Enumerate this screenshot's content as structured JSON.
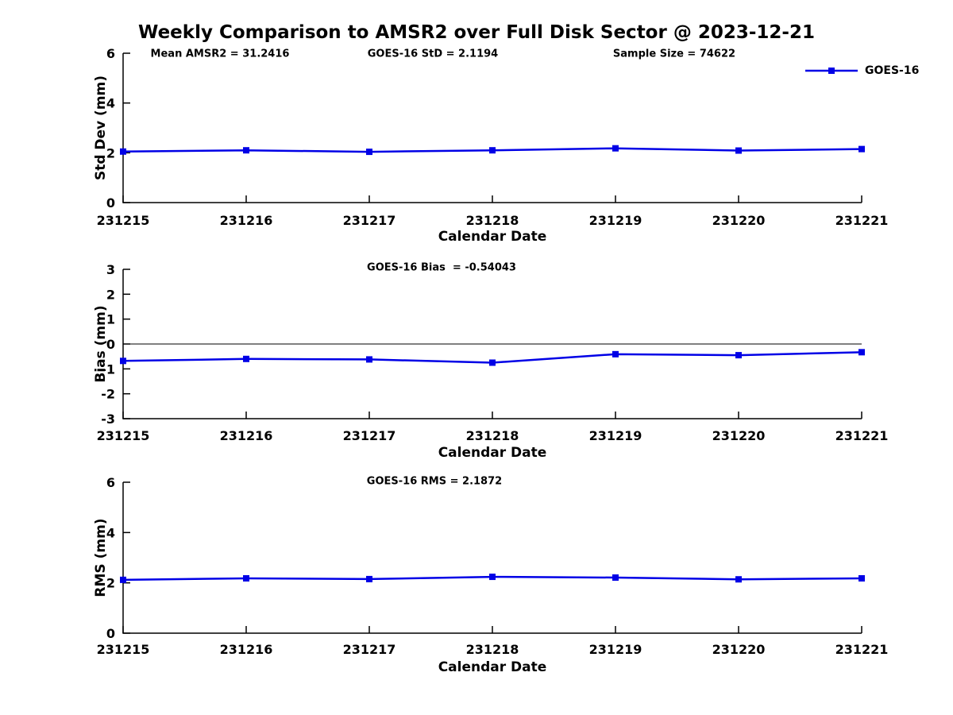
{
  "figure": {
    "title": "Weekly Comparison to AMSR2 over Full Disk Sector @ 2023-12-21",
    "legend_label": "GOES-16",
    "series_color": "#0000E6",
    "axis_color": "#000000",
    "background": "#FFFFFF"
  },
  "chart_data": [
    {
      "type": "line",
      "panel": "std-dev",
      "annotations": [
        "Mean AMSR2 = 31.2416",
        "GOES-16 StD = 2.1194",
        "Sample Size = 74622"
      ],
      "ylabel": "Std Dev (mm)",
      "xlabel": "Calendar Date",
      "categories": [
        "231215",
        "231216",
        "231217",
        "231218",
        "231219",
        "231220",
        "231221"
      ],
      "series": [
        {
          "name": "GOES-16",
          "values": [
            2.05,
            2.1,
            2.04,
            2.1,
            2.18,
            2.09,
            2.15
          ]
        }
      ],
      "ylim": [
        0,
        6
      ],
      "yticks": [
        0,
        2,
        4,
        6
      ],
      "grid": false,
      "legend_position": "top-right",
      "marker": "square"
    },
    {
      "type": "line",
      "panel": "bias",
      "annotations": [
        "GOES-16 Bias  = -0.54043"
      ],
      "ylabel": "Bias (mm)",
      "xlabel": "Calendar Date",
      "categories": [
        "231215",
        "231216",
        "231217",
        "231218",
        "231219",
        "231220",
        "231221"
      ],
      "series": [
        {
          "name": "GOES-16",
          "values": [
            -0.68,
            -0.6,
            -0.62,
            -0.75,
            -0.41,
            -0.45,
            -0.33
          ]
        }
      ],
      "ylim": [
        -3,
        3
      ],
      "yticks": [
        -3,
        -2,
        -1,
        0,
        1,
        2,
        3
      ],
      "zero_line": true,
      "grid": false,
      "marker": "square"
    },
    {
      "type": "line",
      "panel": "rms",
      "annotations": [
        "GOES-16 RMS = 2.1872"
      ],
      "ylabel": "RMS (mm)",
      "xlabel": "Calendar Date",
      "categories": [
        "231215",
        "231216",
        "231217",
        "231218",
        "231219",
        "231220",
        "231221"
      ],
      "series": [
        {
          "name": "GOES-16",
          "values": [
            2.12,
            2.18,
            2.15,
            2.24,
            2.21,
            2.14,
            2.18
          ]
        }
      ],
      "ylim": [
        0,
        6
      ],
      "yticks": [
        0,
        2,
        4,
        6
      ],
      "grid": false,
      "marker": "square"
    }
  ]
}
